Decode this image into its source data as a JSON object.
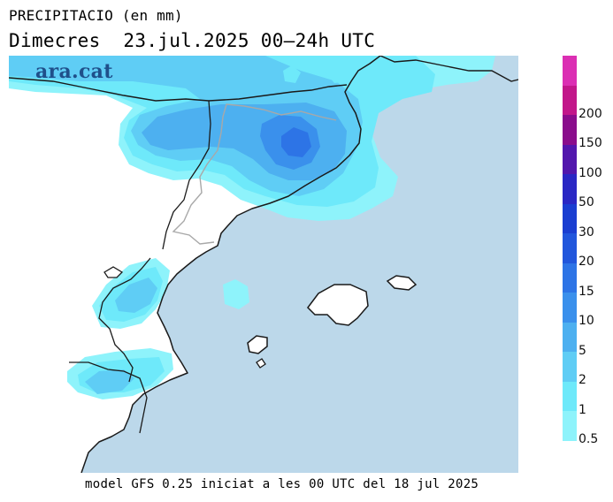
{
  "title": {
    "line1": "PRECIPITACIO (en mm)",
    "line2": "Dimecres  23.jul.2025 00–24h UTC"
  },
  "footer": "model GFS 0.25 iniciat a les 00 UTC del 18 jul 2025",
  "watermark": "ara.cat",
  "colors": {
    "sea": "#bcd8ea",
    "land": "#ffffff",
    "coast": "#1a1a1a",
    "border": "#a8a8a8"
  },
  "legend": {
    "bins": [
      {
        "label": "0.5",
        "color": "#8ef3fb"
      },
      {
        "label": "1",
        "color": "#6ee9fa"
      },
      {
        "label": "2",
        "color": "#5fcdf5"
      },
      {
        "label": "5",
        "color": "#4db0f0"
      },
      {
        "label": "10",
        "color": "#3a90ec"
      },
      {
        "label": "15",
        "color": "#2d74e6"
      },
      {
        "label": "20",
        "color": "#2156dc"
      },
      {
        "label": "30",
        "color": "#1a3ed1"
      },
      {
        "label": "50",
        "color": "#2a27c4"
      },
      {
        "label": "100",
        "color": "#5217ad"
      },
      {
        "label": "150",
        "color": "#8a0d8c"
      },
      {
        "label": "200",
        "color": "#c2178a"
      },
      {
        "label": "",
        "color": "#db2fb3"
      }
    ]
  }
}
